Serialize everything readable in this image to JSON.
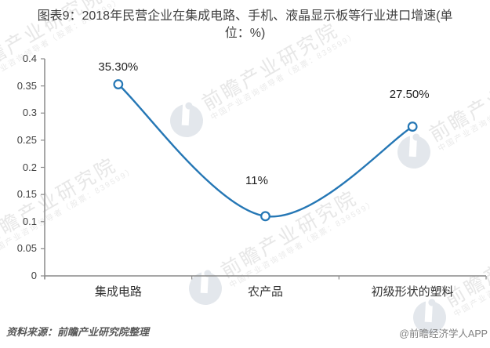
{
  "title": "图表9：2018年民营企业在集成电路、手机、液晶显示板等行业进口增速(单位：%)",
  "footer": {
    "source": "资料来源：前瞻产业研究院整理",
    "brand": "@前瞻经济学人APP"
  },
  "watermark": {
    "brand": "前瞻产业研究院",
    "tagline": "中国产业咨询领导者（股票：839599）"
  },
  "colors": {
    "line": "#2577b5",
    "marker_fill": "#ffffff",
    "axis": "#8a8a8a",
    "title_text": "#404040",
    "label_text": "#1f1f1f",
    "source_text": "#595959",
    "brand_text": "#808080",
    "watermark_text": "#e7e7e7"
  },
  "chart_data": {
    "type": "line",
    "smooth": true,
    "categories": [
      "集成电路",
      "农产品",
      "初级形状的塑料"
    ],
    "values": [
      0.353,
      0.11,
      0.275
    ],
    "data_labels": [
      "35.30%",
      "11%",
      "27.50%"
    ],
    "y_ticks": [
      "0",
      "0.05",
      "0.1",
      "0.15",
      "0.2",
      "0.25",
      "0.3",
      "0.35",
      "0.4"
    ],
    "ylim": [
      0,
      0.4
    ],
    "xlabel": "",
    "ylabel": "",
    "grid": false,
    "legend": false,
    "title": "图表9：2018年民营企业在集成电路、手机、液晶显示板等行业进口增速(单位：%)"
  }
}
